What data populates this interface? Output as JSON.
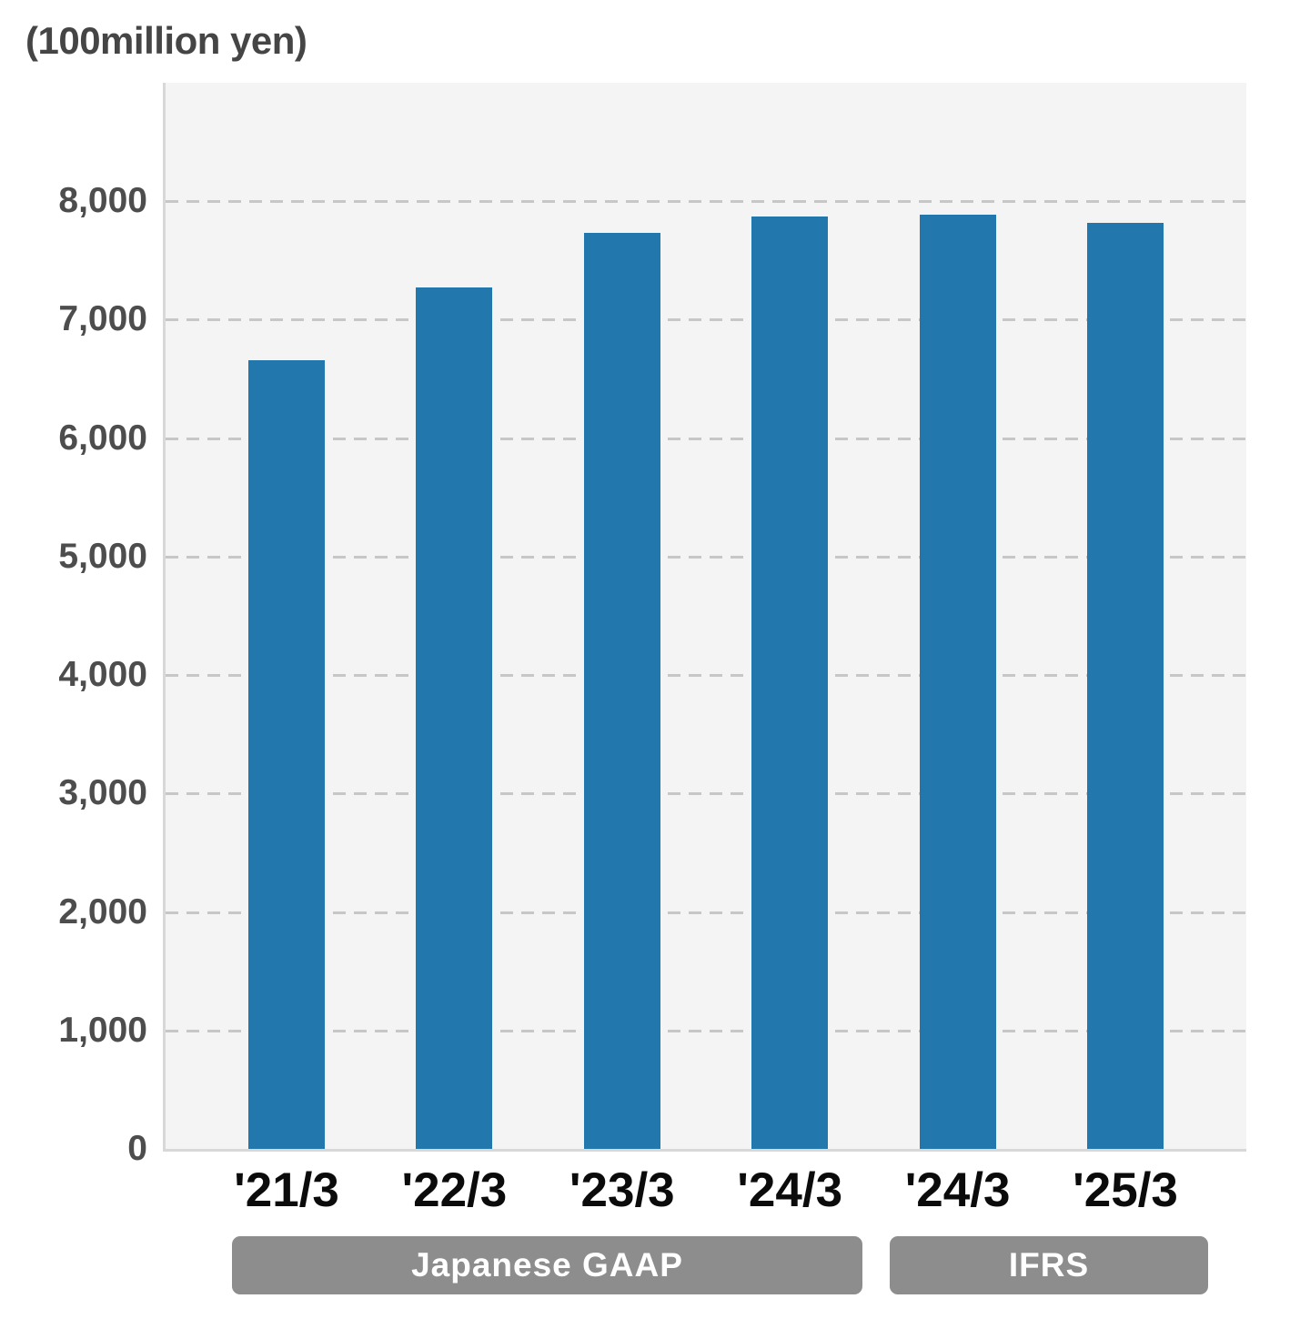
{
  "chart_data": {
    "type": "bar",
    "title": "(100million yen)",
    "categories": [
      "'21/3",
      "'22/3",
      "'23/3",
      "'24/3",
      "'24/3",
      "'25/3"
    ],
    "values": [
      6660,
      7270,
      7730,
      7870,
      7890,
      7820
    ],
    "xlabel": "",
    "ylabel": "(100million yen)",
    "ylim": [
      0,
      9000
    ],
    "yticks": [
      0,
      1000,
      2000,
      3000,
      4000,
      5000,
      6000,
      7000,
      8000
    ],
    "grid": "horizontal-dashed",
    "legend_position": "none",
    "groups": [
      {
        "label": "Japanese GAAP",
        "from_category_index": 0,
        "to_category_index": 3
      },
      {
        "label": "IFRS",
        "from_category_index": 4,
        "to_category_index": 5
      }
    ],
    "colors": {
      "bar": "#2277ad",
      "plot_background": "#f4f4f4",
      "gridline": "#c7c7c7",
      "axis_line": "#d8d8d8",
      "title_text": "#454545",
      "ytick_text": "#4d4d4d",
      "xtick_text": "#0b0b0b",
      "badge_background": "#8d8d8d",
      "badge_text": "#ffffff",
      "page_background": "#ffffff"
    }
  }
}
